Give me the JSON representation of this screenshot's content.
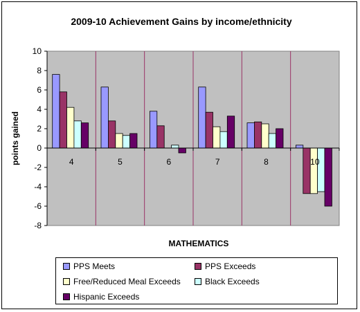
{
  "chart_data": {
    "type": "bar",
    "title": "2009-10 Achievement Gains by income/ethnicity",
    "xlabel": "MATHEMATICS",
    "ylabel": "points gained",
    "categories": [
      "4",
      "5",
      "6",
      "7",
      "8",
      "10"
    ],
    "ylim": [
      -8,
      10
    ],
    "yticks": [
      -8,
      -6,
      -4,
      -2,
      0,
      2,
      4,
      6,
      8,
      10
    ],
    "grid": false,
    "plot_background": "#c0c0c0",
    "legend_position": "bottom",
    "series": [
      {
        "name": "PPS Meets",
        "color": "#9999ff",
        "values": [
          7.6,
          6.3,
          3.8,
          6.3,
          2.6,
          0.3
        ]
      },
      {
        "name": "PPS Exceeds",
        "color": "#993366",
        "values": [
          5.8,
          2.8,
          2.3,
          3.7,
          2.7,
          -4.7
        ]
      },
      {
        "name": "Free/Reduced Meal Exceeds",
        "color": "#ffffcc",
        "values": [
          4.2,
          1.5,
          0.0,
          2.2,
          2.5,
          -4.7
        ]
      },
      {
        "name": "Black Exceeds",
        "color": "#ccffff",
        "values": [
          2.8,
          1.3,
          0.3,
          1.7,
          1.5,
          -4.5
        ]
      },
      {
        "name": "Hispanic Exceeds",
        "color": "#660066",
        "values": [
          2.6,
          1.5,
          -0.5,
          3.3,
          2.0,
          -6.0
        ]
      }
    ]
  }
}
